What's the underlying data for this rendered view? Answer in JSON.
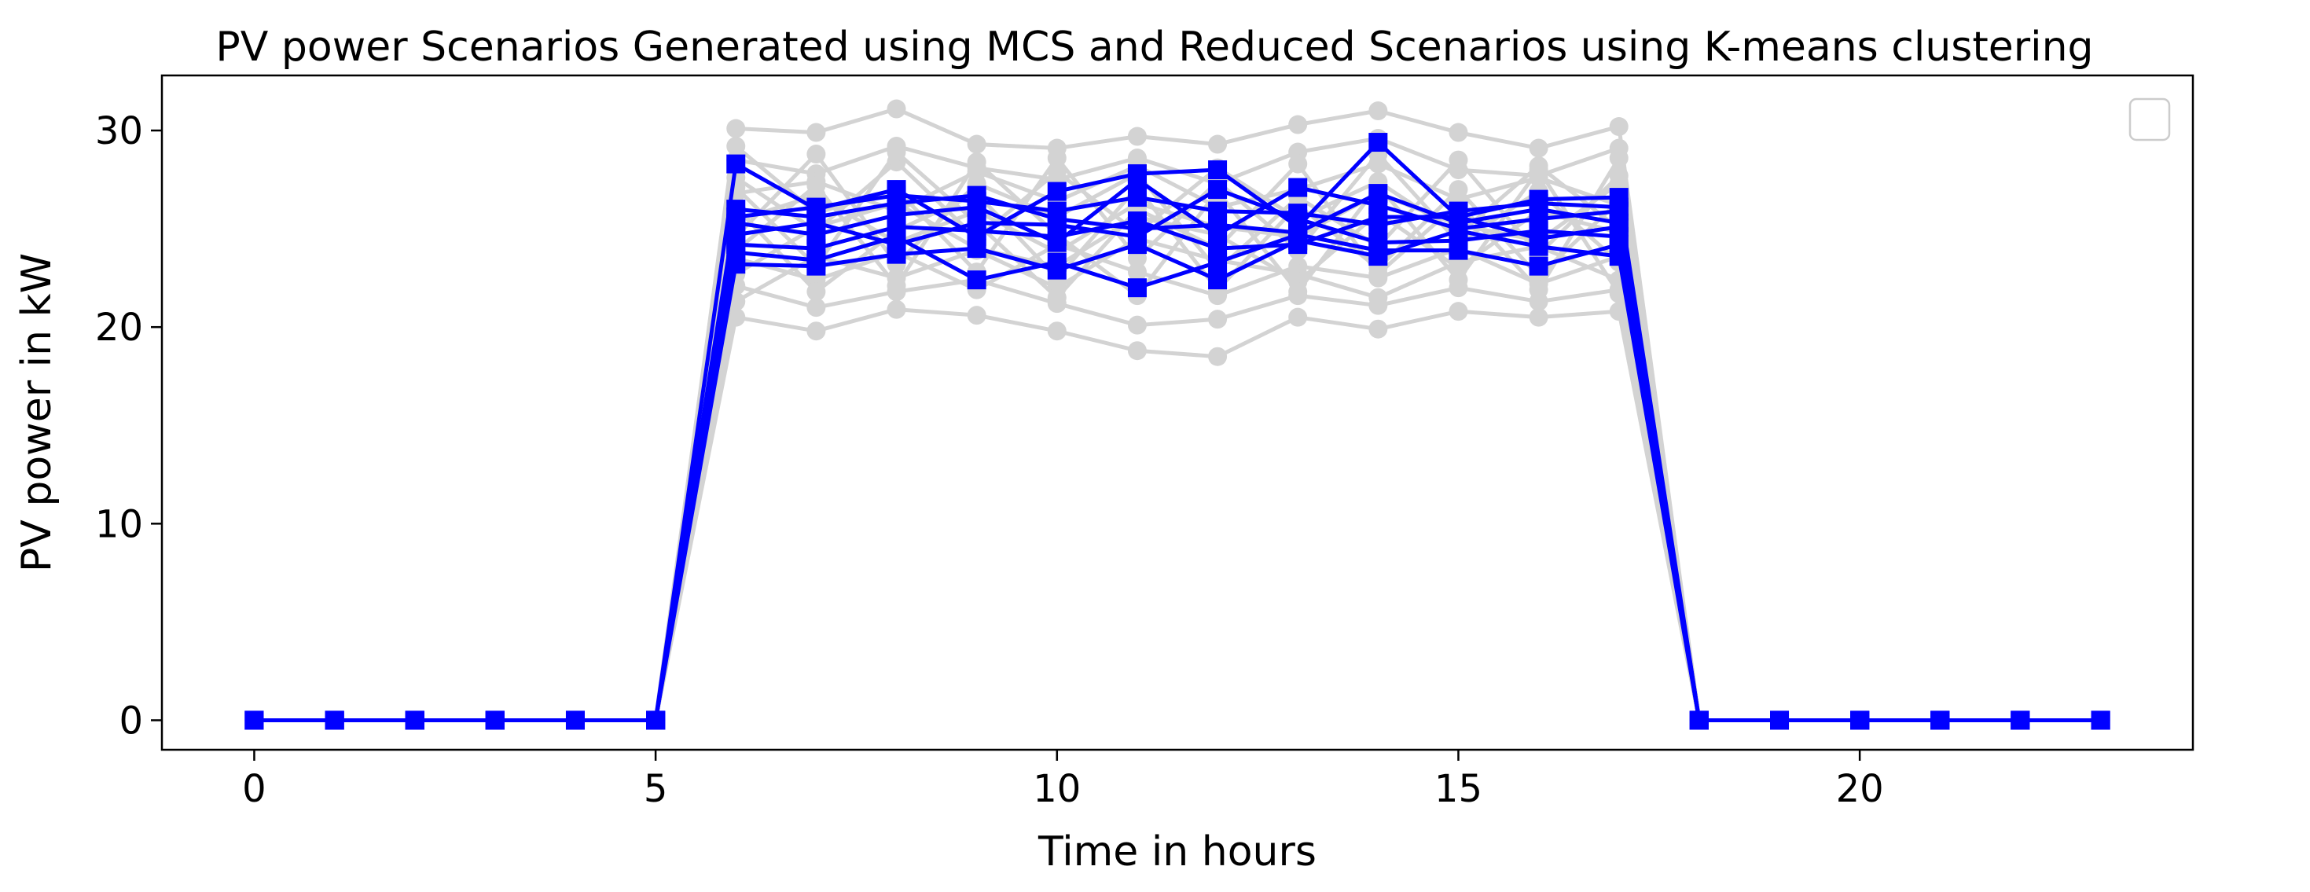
{
  "chart_data": {
    "type": "line",
    "title": "PV power Scenarios Generated using MCS and Reduced Scenarios using K-means clustering",
    "xlabel": "Time in hours",
    "ylabel": "PV power in kW",
    "xlim": [
      -1.15,
      24.15
    ],
    "ylim": [
      -1.5,
      32.8
    ],
    "xticks": [
      0,
      5,
      10,
      15,
      20
    ],
    "yticks": [
      0,
      10,
      20,
      30
    ],
    "grid": false,
    "legend": {
      "placement": "top-right",
      "entries": []
    },
    "x": [
      0,
      1,
      2,
      3,
      4,
      5,
      6,
      7,
      8,
      9,
      10,
      11,
      12,
      13,
      14,
      15,
      16,
      17,
      18,
      19,
      20,
      21,
      22,
      23
    ],
    "colors": {
      "mcs": "#d3d3d3",
      "reduced": "#0000ff"
    },
    "markers": {
      "mcs": "circle",
      "reduced": "square"
    },
    "mcs_scenarios": [
      [
        0,
        0,
        0,
        0,
        0,
        0,
        30.1,
        29.9,
        31.1,
        29.3,
        29.1,
        29.7,
        29.3,
        30.3,
        31.0,
        29.9,
        29.1,
        30.2,
        0,
        0,
        0,
        0,
        0,
        0
      ],
      [
        0,
        0,
        0,
        0,
        0,
        0,
        20.5,
        19.8,
        20.9,
        20.6,
        19.8,
        18.8,
        18.5,
        20.5,
        19.9,
        20.8,
        20.5,
        20.8,
        0,
        0,
        0,
        0,
        0,
        0
      ],
      [
        0,
        0,
        0,
        0,
        0,
        0,
        28.5,
        27.8,
        29.2,
        28.1,
        27.5,
        28.6,
        27.3,
        28.9,
        29.6,
        28.0,
        27.7,
        29.1,
        0,
        0,
        0,
        0,
        0,
        0
      ],
      [
        0,
        0,
        0,
        0,
        0,
        0,
        22.1,
        21.0,
        21.8,
        22.4,
        21.2,
        20.1,
        20.4,
        21.6,
        21.1,
        22.0,
        21.3,
        21.9,
        0,
        0,
        0,
        0,
        0,
        0
      ],
      [
        0,
        0,
        0,
        0,
        0,
        0,
        26.8,
        27.4,
        25.9,
        27.9,
        26.4,
        28.2,
        26.1,
        27.0,
        28.3,
        26.5,
        27.6,
        26.2,
        0,
        0,
        0,
        0,
        0,
        0
      ],
      [
        0,
        0,
        0,
        0,
        0,
        0,
        23.5,
        22.4,
        23.8,
        21.9,
        24.2,
        22.8,
        21.6,
        23.1,
        22.5,
        24.0,
        22.2,
        23.6,
        0,
        0,
        0,
        0,
        0,
        0
      ],
      [
        0,
        0,
        0,
        0,
        0,
        0,
        25.4,
        26.7,
        24.3,
        25.9,
        23.8,
        26.3,
        25.1,
        24.6,
        26.8,
        25.2,
        24.4,
        27.3,
        0,
        0,
        0,
        0,
        0,
        0
      ],
      [
        0,
        0,
        0,
        0,
        0,
        0,
        27.6,
        24.9,
        28.4,
        24.5,
        27.9,
        24.8,
        28.1,
        25.5,
        27.4,
        24.7,
        28.2,
        25.0,
        0,
        0,
        0,
        0,
        0,
        0
      ],
      [
        0,
        0,
        0,
        0,
        0,
        0,
        21.3,
        23.6,
        22.5,
        23.9,
        22.0,
        24.5,
        23.4,
        22.7,
        21.5,
        23.3,
        24.1,
        22.4,
        0,
        0,
        0,
        0,
        0,
        0
      ],
      [
        0,
        0,
        0,
        0,
        0,
        0,
        24.6,
        28.8,
        23.2,
        27.3,
        25.6,
        27.8,
        22.9,
        26.6,
        24.1,
        28.5,
        23.7,
        27.7,
        0,
        0,
        0,
        0,
        0,
        0
      ],
      [
        0,
        0,
        0,
        0,
        0,
        0,
        29.2,
        25.8,
        27.0,
        22.8,
        28.6,
        23.5,
        27.4,
        23.9,
        28.8,
        24.3,
        26.9,
        23.3,
        0,
        0,
        0,
        0,
        0,
        0
      ],
      [
        0,
        0,
        0,
        0,
        0,
        0,
        22.7,
        25.1,
        26.3,
        24.0,
        23.1,
        25.6,
        24.7,
        22.3,
        25.8,
        23.0,
        25.9,
        24.8,
        0,
        0,
        0,
        0,
        0,
        0
      ],
      [
        0,
        0,
        0,
        0,
        0,
        0,
        26.1,
        21.8,
        24.9,
        26.8,
        22.5,
        27.1,
        21.9,
        26.2,
        23.0,
        27.0,
        22.6,
        26.4,
        0,
        0,
        0,
        0,
        0,
        0
      ],
      [
        0,
        0,
        0,
        0,
        0,
        0,
        23.9,
        27.2,
        22.1,
        28.4,
        24.7,
        21.6,
        26.9,
        21.8,
        27.2,
        22.4,
        28.0,
        21.7,
        0,
        0,
        0,
        0,
        0,
        0
      ],
      [
        0,
        0,
        0,
        0,
        0,
        0,
        27.1,
        23.1,
        28.9,
        25.3,
        21.5,
        26.0,
        24.0,
        28.3,
        22.7,
        26.3,
        21.9,
        28.6,
        0,
        0,
        0,
        0,
        0,
        0
      ]
    ],
    "reduced_scenarios": [
      [
        0,
        0,
        0,
        0,
        0,
        0,
        28.3,
        26.0,
        27.0,
        24.6,
        26.9,
        27.8,
        28.0,
        25.1,
        29.4,
        25.6,
        26.5,
        26.6,
        0,
        0,
        0,
        0,
        0,
        0
      ],
      [
        0,
        0,
        0,
        0,
        0,
        0,
        26.0,
        25.6,
        26.3,
        26.7,
        25.5,
        25.0,
        25.2,
        24.8,
        26.8,
        25.3,
        26.0,
        25.3,
        0,
        0,
        0,
        0,
        0,
        0
      ],
      [
        0,
        0,
        0,
        0,
        0,
        0,
        25.3,
        24.7,
        25.7,
        26.1,
        24.3,
        27.5,
        24.7,
        27.1,
        26.2,
        25.0,
        25.5,
        25.9,
        0,
        0,
        0,
        0,
        0,
        0
      ],
      [
        0,
        0,
        0,
        0,
        0,
        0,
        24.7,
        25.3,
        24.2,
        25.3,
        25.2,
        24.6,
        27.0,
        25.5,
        24.3,
        24.4,
        24.9,
        24.6,
        0,
        0,
        0,
        0,
        0,
        0
      ],
      [
        0,
        0,
        0,
        0,
        0,
        0,
        24.2,
        24.0,
        25.1,
        24.9,
        24.6,
        25.4,
        24.0,
        24.2,
        25.6,
        25.6,
        24.5,
        25.1,
        0,
        0,
        0,
        0,
        0,
        0
      ],
      [
        0,
        0,
        0,
        0,
        0,
        0,
        23.8,
        23.4,
        24.6,
        22.4,
        23.3,
        22.0,
        23.3,
        24.7,
        23.9,
        23.9,
        23.1,
        24.2,
        0,
        0,
        0,
        0,
        0,
        0
      ],
      [
        0,
        0,
        0,
        0,
        0,
        0,
        23.2,
        23.1,
        23.7,
        24.0,
        22.9,
        24.2,
        22.4,
        24.4,
        23.6,
        24.9,
        24.1,
        23.6,
        0,
        0,
        0,
        0,
        0,
        0
      ],
      [
        0,
        0,
        0,
        0,
        0,
        0,
        25.6,
        26.1,
        26.7,
        26.4,
        25.9,
        26.6,
        25.9,
        25.8,
        25.2,
        25.9,
        26.3,
        26.1,
        0,
        0,
        0,
        0,
        0,
        0
      ]
    ]
  }
}
